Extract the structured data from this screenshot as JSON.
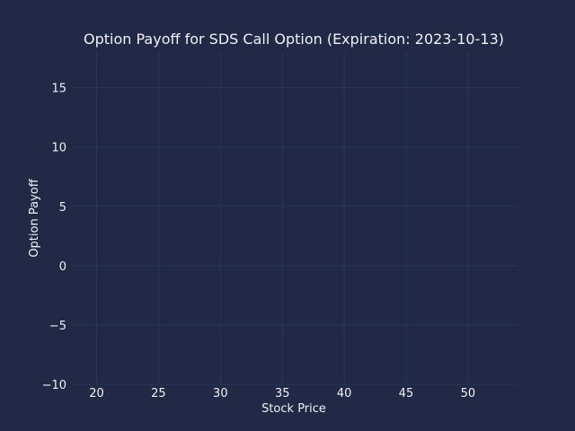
{
  "chart_data": {
    "type": "line",
    "title": "Option Payoff for SDS Call Option (Expiration: 2023-10-13)",
    "xlabel": "Stock Price",
    "ylabel": "Option Payoff",
    "xlim": [
      18,
      54
    ],
    "ylim": [
      -10,
      18
    ],
    "x_ticks": [
      20,
      25,
      30,
      35,
      40,
      45,
      50
    ],
    "x_tick_labels": [
      "20",
      "25",
      "30",
      "35",
      "40",
      "45",
      "50"
    ],
    "y_ticks": [
      -10,
      -5,
      0,
      5,
      10,
      15
    ],
    "y_tick_labels": [
      "−10",
      "−5",
      "0",
      "5",
      "10",
      "15"
    ],
    "grid": true,
    "series": []
  },
  "colors": {
    "background": "#212946",
    "grid": "#2b3a5e",
    "text": "#f0f0f5"
  }
}
